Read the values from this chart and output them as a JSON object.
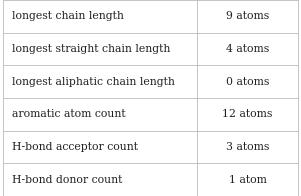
{
  "rows": [
    [
      "longest chain length",
      "9 atoms"
    ],
    [
      "longest straight chain length",
      "4 atoms"
    ],
    [
      "longest aliphatic chain length",
      "0 atoms"
    ],
    [
      "aromatic atom count",
      "12 atoms"
    ],
    [
      "H-bond acceptor count",
      "3 atoms"
    ],
    [
      "H-bond donor count",
      "1 atom"
    ]
  ],
  "col_split": 0.655,
  "bg_color": "#ffffff",
  "border_color": "#bbbbbb",
  "text_color": "#222222",
  "font_size": 7.8,
  "figsize": [
    3.01,
    1.96
  ],
  "dpi": 100
}
